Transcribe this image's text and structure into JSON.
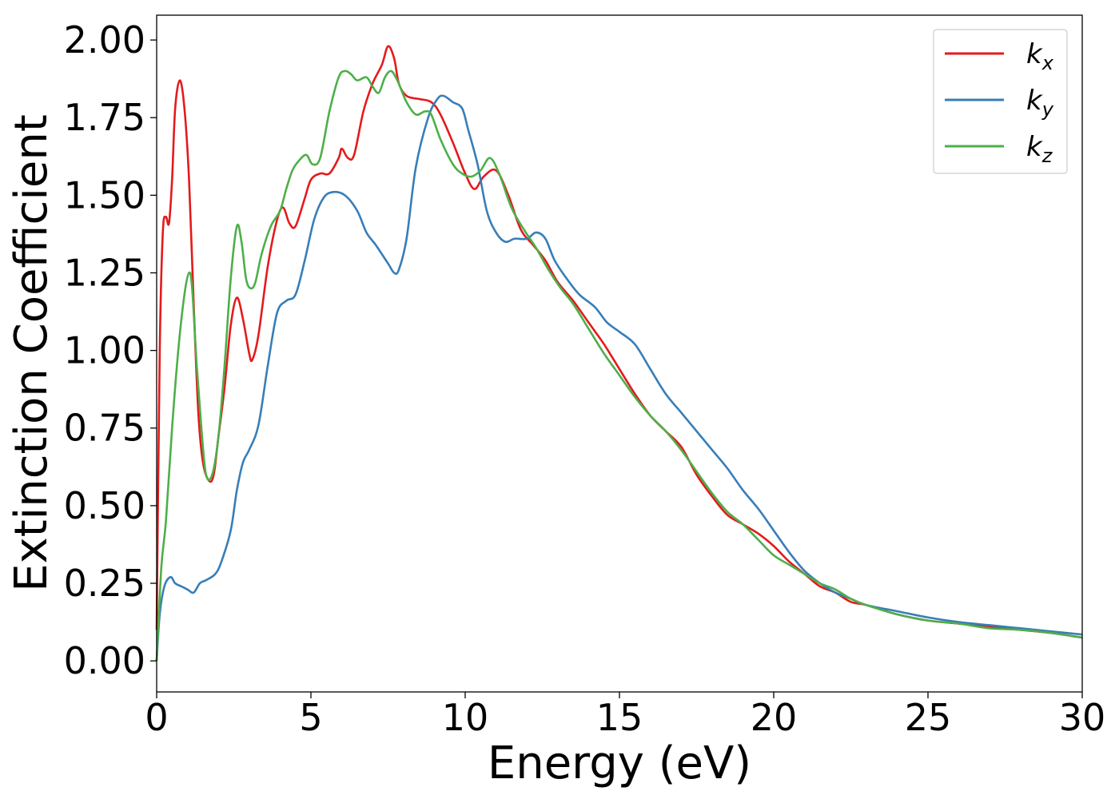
{
  "chart_data": {
    "type": "line",
    "title": "",
    "xlabel": "Energy (eV)",
    "ylabel": "Extinction Coefficient",
    "xlim": [
      0,
      30
    ],
    "ylim": [
      -0.1,
      2.08
    ],
    "xticks": [
      0,
      5,
      10,
      15,
      20,
      25,
      30
    ],
    "xtick_labels": [
      "0",
      "5",
      "10",
      "15",
      "20",
      "25",
      "30"
    ],
    "yticks": [
      0,
      0.25,
      0.5,
      0.75,
      1.0,
      1.25,
      1.5,
      1.75,
      2.0
    ],
    "ytick_labels": [
      "0.00",
      "0.25",
      "0.50",
      "0.75",
      "1.00",
      "1.25",
      "1.50",
      "1.75",
      "2.00"
    ],
    "grid": false,
    "legend_position": "top-right",
    "series": [
      {
        "name": "k_x",
        "legend_base": "k",
        "legend_sub": "x",
        "color": "#e41a1c",
        "points": [
          [
            0,
            0.1
          ],
          [
            0.1,
            1.0
          ],
          [
            0.2,
            1.38
          ],
          [
            0.3,
            1.43
          ],
          [
            0.4,
            1.41
          ],
          [
            0.5,
            1.55
          ],
          [
            0.6,
            1.78
          ],
          [
            0.75,
            1.87
          ],
          [
            0.9,
            1.78
          ],
          [
            1.05,
            1.55
          ],
          [
            1.2,
            1.15
          ],
          [
            1.35,
            0.8
          ],
          [
            1.5,
            0.64
          ],
          [
            1.7,
            0.58
          ],
          [
            1.85,
            0.6
          ],
          [
            2.0,
            0.72
          ],
          [
            2.2,
            0.88
          ],
          [
            2.4,
            1.08
          ],
          [
            2.6,
            1.17
          ],
          [
            2.8,
            1.1
          ],
          [
            3.0,
            0.99
          ],
          [
            3.1,
            0.97
          ],
          [
            3.3,
            1.05
          ],
          [
            3.6,
            1.27
          ],
          [
            3.9,
            1.42
          ],
          [
            4.1,
            1.46
          ],
          [
            4.3,
            1.41
          ],
          [
            4.5,
            1.4
          ],
          [
            4.8,
            1.49
          ],
          [
            5.0,
            1.55
          ],
          [
            5.3,
            1.57
          ],
          [
            5.6,
            1.57
          ],
          [
            5.9,
            1.62
          ],
          [
            6.0,
            1.65
          ],
          [
            6.2,
            1.62
          ],
          [
            6.4,
            1.63
          ],
          [
            6.7,
            1.77
          ],
          [
            7.0,
            1.86
          ],
          [
            7.3,
            1.92
          ],
          [
            7.5,
            1.98
          ],
          [
            7.7,
            1.94
          ],
          [
            7.85,
            1.86
          ],
          [
            8.1,
            1.82
          ],
          [
            8.5,
            1.81
          ],
          [
            8.9,
            1.8
          ],
          [
            9.2,
            1.76
          ],
          [
            9.6,
            1.67
          ],
          [
            10.0,
            1.57
          ],
          [
            10.3,
            1.52
          ],
          [
            10.6,
            1.56
          ],
          [
            11.0,
            1.58
          ],
          [
            11.4,
            1.5
          ],
          [
            11.8,
            1.39
          ],
          [
            12.2,
            1.34
          ],
          [
            12.6,
            1.29
          ],
          [
            13.0,
            1.22
          ],
          [
            13.5,
            1.16
          ],
          [
            14.0,
            1.09
          ],
          [
            14.5,
            1.02
          ],
          [
            15.0,
            0.94
          ],
          [
            15.5,
            0.86
          ],
          [
            16.0,
            0.79
          ],
          [
            16.5,
            0.74
          ],
          [
            17.0,
            0.69
          ],
          [
            17.5,
            0.6
          ],
          [
            18.0,
            0.53
          ],
          [
            18.5,
            0.47
          ],
          [
            19.0,
            0.44
          ],
          [
            19.5,
            0.41
          ],
          [
            20.0,
            0.37
          ],
          [
            20.5,
            0.32
          ],
          [
            21.0,
            0.28
          ],
          [
            21.5,
            0.24
          ],
          [
            22.0,
            0.22
          ],
          [
            22.5,
            0.19
          ],
          [
            23.0,
            0.18
          ],
          [
            24.0,
            0.15
          ],
          [
            25.0,
            0.13
          ],
          [
            26.0,
            0.12
          ],
          [
            27.0,
            0.11
          ],
          [
            28.0,
            0.1
          ],
          [
            29.0,
            0.09
          ],
          [
            30.0,
            0.075
          ]
        ]
      },
      {
        "name": "k_y",
        "legend_base": "k",
        "legend_sub": "y",
        "color": "#377eb8",
        "points": [
          [
            0,
            0.0
          ],
          [
            0.1,
            0.15
          ],
          [
            0.25,
            0.24
          ],
          [
            0.45,
            0.27
          ],
          [
            0.6,
            0.25
          ],
          [
            0.8,
            0.24
          ],
          [
            1.0,
            0.23
          ],
          [
            1.2,
            0.22
          ],
          [
            1.4,
            0.25
          ],
          [
            1.6,
            0.26
          ],
          [
            1.9,
            0.28
          ],
          [
            2.1,
            0.32
          ],
          [
            2.4,
            0.42
          ],
          [
            2.6,
            0.55
          ],
          [
            2.8,
            0.64
          ],
          [
            3.0,
            0.68
          ],
          [
            3.3,
            0.76
          ],
          [
            3.6,
            0.95
          ],
          [
            3.9,
            1.12
          ],
          [
            4.2,
            1.16
          ],
          [
            4.5,
            1.18
          ],
          [
            4.8,
            1.29
          ],
          [
            5.1,
            1.42
          ],
          [
            5.4,
            1.49
          ],
          [
            5.7,
            1.51
          ],
          [
            6.1,
            1.5
          ],
          [
            6.5,
            1.45
          ],
          [
            6.8,
            1.38
          ],
          [
            7.1,
            1.34
          ],
          [
            7.5,
            1.28
          ],
          [
            7.7,
            1.25
          ],
          [
            7.85,
            1.26
          ],
          [
            8.1,
            1.36
          ],
          [
            8.4,
            1.59
          ],
          [
            8.8,
            1.75
          ],
          [
            9.1,
            1.81
          ],
          [
            9.3,
            1.82
          ],
          [
            9.6,
            1.8
          ],
          [
            9.9,
            1.78
          ],
          [
            10.1,
            1.71
          ],
          [
            10.4,
            1.6
          ],
          [
            10.7,
            1.45
          ],
          [
            11.0,
            1.38
          ],
          [
            11.3,
            1.35
          ],
          [
            11.6,
            1.36
          ],
          [
            12.0,
            1.36
          ],
          [
            12.3,
            1.38
          ],
          [
            12.6,
            1.36
          ],
          [
            12.9,
            1.29
          ],
          [
            13.3,
            1.23
          ],
          [
            13.7,
            1.18
          ],
          [
            14.2,
            1.14
          ],
          [
            14.6,
            1.09
          ],
          [
            15.0,
            1.06
          ],
          [
            15.5,
            1.02
          ],
          [
            16.0,
            0.94
          ],
          [
            16.5,
            0.86
          ],
          [
            17.0,
            0.8
          ],
          [
            17.5,
            0.74
          ],
          [
            18.0,
            0.68
          ],
          [
            18.5,
            0.62
          ],
          [
            19.0,
            0.55
          ],
          [
            19.5,
            0.49
          ],
          [
            20.0,
            0.42
          ],
          [
            20.5,
            0.35
          ],
          [
            21.0,
            0.29
          ],
          [
            21.5,
            0.25
          ],
          [
            22.0,
            0.22
          ],
          [
            22.5,
            0.2
          ],
          [
            23.0,
            0.18
          ],
          [
            24.0,
            0.16
          ],
          [
            25.0,
            0.14
          ],
          [
            26.0,
            0.125
          ],
          [
            27.0,
            0.115
          ],
          [
            28.0,
            0.105
          ],
          [
            29.0,
            0.095
          ],
          [
            30.0,
            0.085
          ]
        ]
      },
      {
        "name": "k_z",
        "legend_base": "k",
        "legend_sub": "z",
        "color": "#4daf4a",
        "points": [
          [
            0,
            0.0
          ],
          [
            0.15,
            0.3
          ],
          [
            0.3,
            0.45
          ],
          [
            0.5,
            0.75
          ],
          [
            0.7,
            1.0
          ],
          [
            0.9,
            1.18
          ],
          [
            1.05,
            1.25
          ],
          [
            1.15,
            1.2
          ],
          [
            1.3,
            0.95
          ],
          [
            1.45,
            0.75
          ],
          [
            1.6,
            0.6
          ],
          [
            1.8,
            0.6
          ],
          [
            2.0,
            0.72
          ],
          [
            2.2,
            0.95
          ],
          [
            2.4,
            1.23
          ],
          [
            2.6,
            1.4
          ],
          [
            2.75,
            1.35
          ],
          [
            2.9,
            1.23
          ],
          [
            3.05,
            1.2
          ],
          [
            3.2,
            1.22
          ],
          [
            3.4,
            1.31
          ],
          [
            3.7,
            1.4
          ],
          [
            4.0,
            1.45
          ],
          [
            4.2,
            1.52
          ],
          [
            4.4,
            1.58
          ],
          [
            4.6,
            1.61
          ],
          [
            4.85,
            1.63
          ],
          [
            5.05,
            1.6
          ],
          [
            5.3,
            1.62
          ],
          [
            5.6,
            1.77
          ],
          [
            5.9,
            1.88
          ],
          [
            6.1,
            1.9
          ],
          [
            6.3,
            1.89
          ],
          [
            6.5,
            1.87
          ],
          [
            6.8,
            1.88
          ],
          [
            7.0,
            1.85
          ],
          [
            7.2,
            1.83
          ],
          [
            7.4,
            1.88
          ],
          [
            7.6,
            1.9
          ],
          [
            7.8,
            1.87
          ],
          [
            8.1,
            1.8
          ],
          [
            8.4,
            1.76
          ],
          [
            8.7,
            1.77
          ],
          [
            8.9,
            1.76
          ],
          [
            9.2,
            1.68
          ],
          [
            9.6,
            1.6
          ],
          [
            9.9,
            1.57
          ],
          [
            10.2,
            1.56
          ],
          [
            10.5,
            1.58
          ],
          [
            10.8,
            1.62
          ],
          [
            11.1,
            1.57
          ],
          [
            11.5,
            1.46
          ],
          [
            11.9,
            1.39
          ],
          [
            12.3,
            1.33
          ],
          [
            12.7,
            1.26
          ],
          [
            13.1,
            1.2
          ],
          [
            13.5,
            1.15
          ],
          [
            14.0,
            1.07
          ],
          [
            14.5,
            0.99
          ],
          [
            15.0,
            0.92
          ],
          [
            15.5,
            0.85
          ],
          [
            16.0,
            0.79
          ],
          [
            16.5,
            0.74
          ],
          [
            17.0,
            0.68
          ],
          [
            17.5,
            0.61
          ],
          [
            18.0,
            0.54
          ],
          [
            18.5,
            0.48
          ],
          [
            19.0,
            0.44
          ],
          [
            19.5,
            0.39
          ],
          [
            20.0,
            0.34
          ],
          [
            20.5,
            0.31
          ],
          [
            21.0,
            0.28
          ],
          [
            21.5,
            0.25
          ],
          [
            22.0,
            0.23
          ],
          [
            22.5,
            0.2
          ],
          [
            23.0,
            0.18
          ],
          [
            24.0,
            0.15
          ],
          [
            25.0,
            0.13
          ],
          [
            26.0,
            0.12
          ],
          [
            27.0,
            0.105
          ],
          [
            28.0,
            0.1
          ],
          [
            29.0,
            0.09
          ],
          [
            30.0,
            0.075
          ]
        ]
      }
    ]
  }
}
